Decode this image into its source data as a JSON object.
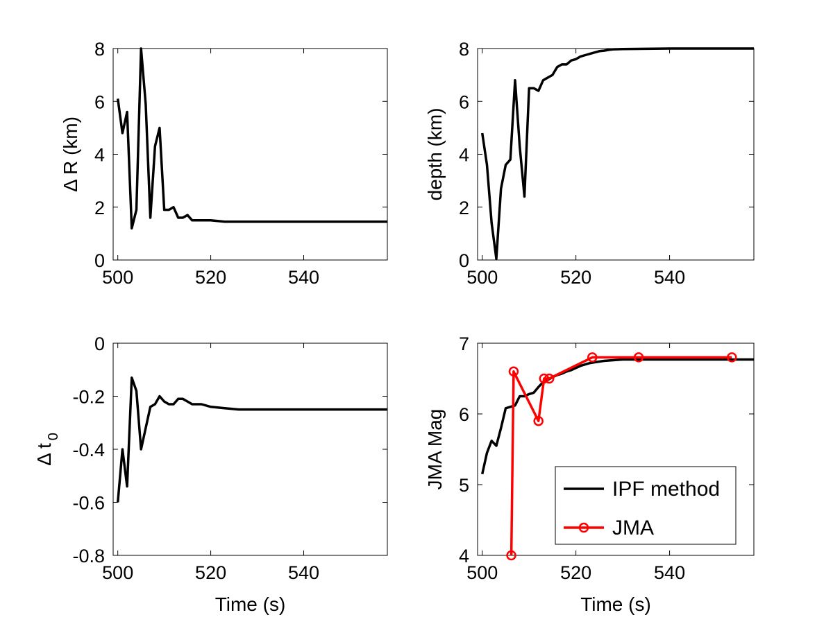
{
  "chart_data": [
    {
      "type": "line",
      "ylabel_main": "Δ R (km)",
      "ylabel_sub": "",
      "xlabel": "",
      "xlim": [
        499,
        558
      ],
      "ylim": [
        0,
        8
      ],
      "xticks": [
        500,
        520,
        540
      ],
      "yticks": [
        0,
        2,
        4,
        6,
        8
      ],
      "grid": false,
      "series": [
        {
          "color": "#000000",
          "x": [
            500,
            501,
            502,
            503,
            504,
            505,
            506,
            507,
            508,
            509,
            510,
            511,
            512,
            513,
            514,
            515,
            516,
            518,
            520,
            523,
            526,
            530,
            540,
            558
          ],
          "y": [
            6.1,
            4.8,
            5.6,
            1.2,
            1.9,
            8.0,
            5.9,
            1.6,
            4.3,
            5.0,
            1.9,
            1.9,
            2.0,
            1.6,
            1.6,
            1.7,
            1.5,
            1.5,
            1.5,
            1.45,
            1.45,
            1.45,
            1.45,
            1.45
          ]
        }
      ]
    },
    {
      "type": "line",
      "ylabel_main": "depth (km)",
      "ylabel_sub": "",
      "xlabel": "",
      "xlim": [
        499,
        558
      ],
      "ylim": [
        0,
        8
      ],
      "xticks": [
        500,
        520,
        540
      ],
      "yticks": [
        0,
        2,
        4,
        6,
        8
      ],
      "grid": false,
      "series": [
        {
          "color": "#000000",
          "x": [
            500,
            501,
            502,
            503,
            504,
            505,
            506,
            507,
            508,
            509,
            510,
            511,
            512,
            513,
            514,
            515,
            516,
            517,
            518,
            519,
            520,
            521,
            522,
            523,
            524,
            525,
            526,
            527,
            528,
            530,
            535,
            540,
            558
          ],
          "y": [
            4.8,
            3.6,
            1.4,
            0.05,
            2.7,
            3.6,
            3.8,
            6.8,
            4.3,
            2.4,
            6.5,
            6.5,
            6.4,
            6.8,
            6.9,
            7.0,
            7.3,
            7.4,
            7.4,
            7.55,
            7.6,
            7.7,
            7.75,
            7.8,
            7.85,
            7.9,
            7.92,
            7.95,
            7.97,
            7.98,
            7.99,
            8.0,
            8.0
          ]
        }
      ]
    },
    {
      "type": "line",
      "ylabel_main": "Δ t",
      "ylabel_sub": "0",
      "xlabel": "Time (s)",
      "xlim": [
        499,
        558
      ],
      "ylim": [
        -0.8,
        0
      ],
      "xticks": [
        500,
        520,
        540
      ],
      "yticks": [
        0,
        -0.2,
        -0.4,
        -0.6,
        -0.8
      ],
      "grid": false,
      "series": [
        {
          "color": "#000000",
          "x": [
            500,
            501,
            502,
            503,
            504,
            505,
            506,
            507,
            508,
            509,
            510,
            511,
            512,
            513,
            514,
            515,
            516,
            518,
            520,
            523,
            526,
            530,
            540,
            558
          ],
          "y": [
            -0.6,
            -0.4,
            -0.54,
            -0.13,
            -0.18,
            -0.4,
            -0.32,
            -0.24,
            -0.23,
            -0.2,
            -0.22,
            -0.23,
            -0.23,
            -0.21,
            -0.21,
            -0.22,
            -0.23,
            -0.23,
            -0.24,
            -0.245,
            -0.25,
            -0.25,
            -0.25,
            -0.25
          ]
        }
      ]
    },
    {
      "type": "line",
      "ylabel_main": "JMA Mag",
      "ylabel_sub": "",
      "xlabel": "Time (s)",
      "xlim": [
        499,
        558
      ],
      "ylim": [
        4,
        7
      ],
      "xticks": [
        500,
        520,
        540
      ],
      "yticks": [
        4,
        5,
        6,
        7
      ],
      "grid": false,
      "legend": {
        "position": "bottom-right",
        "entries": [
          "IPF method",
          "JMA"
        ]
      },
      "series": [
        {
          "name": "IPF method",
          "color": "#000000",
          "marker": "none",
          "x": [
            500,
            501,
            502,
            503,
            504,
            505,
            506,
            507,
            508,
            509,
            510,
            511,
            512,
            513,
            514,
            515,
            516,
            517,
            518,
            519,
            520,
            521,
            522,
            523,
            524,
            525,
            526,
            528,
            530,
            535,
            540,
            558
          ],
          "y": [
            5.15,
            5.45,
            5.62,
            5.55,
            5.8,
            6.08,
            6.1,
            6.12,
            6.25,
            6.25,
            6.28,
            6.3,
            6.38,
            6.45,
            6.48,
            6.52,
            6.55,
            6.57,
            6.6,
            6.62,
            6.65,
            6.68,
            6.7,
            6.72,
            6.73,
            6.74,
            6.75,
            6.76,
            6.77,
            6.77,
            6.77,
            6.77
          ]
        },
        {
          "name": "JMA",
          "color": "#ff0000",
          "marker": "circle",
          "x": [
            506.2,
            506.7,
            512,
            513.2,
            514.3,
            523.5,
            533.4,
            553.3
          ],
          "y": [
            4.0,
            6.6,
            5.9,
            6.5,
            6.5,
            6.8,
            6.8,
            6.8
          ]
        }
      ]
    }
  ]
}
